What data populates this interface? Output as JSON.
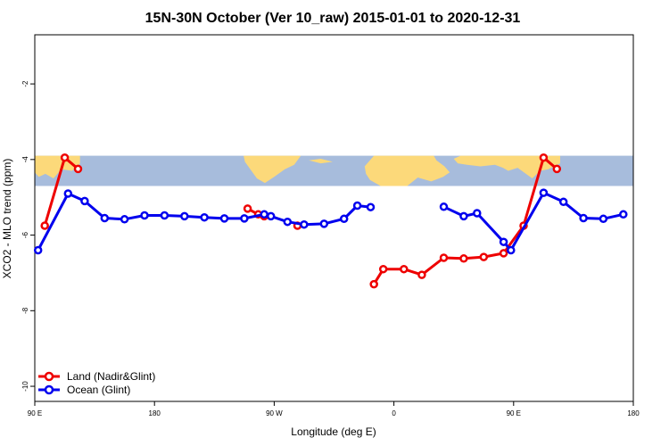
{
  "chart_data": {
    "type": "line",
    "title": "15N-30N October (Ver 10_raw)   2015-01-01 to 2020-12-31",
    "xlabel": "Longitude (deg E)",
    "ylabel": "XCO2 - MLO trend (ppm)",
    "xlim": [
      90,
      540
    ],
    "ylim": [
      -10.4,
      -0.7
    ],
    "x_ticks": [
      {
        "value": 90,
        "label": "90 E"
      },
      {
        "value": 180,
        "label": "180"
      },
      {
        "value": 270,
        "label": "90 W"
      },
      {
        "value": 360,
        "label": "0"
      },
      {
        "value": 450,
        "label": "90 E"
      },
      {
        "value": 540,
        "label": "180"
      }
    ],
    "y_ticks": [
      -2,
      -4,
      -6,
      -8,
      -10
    ],
    "legend": {
      "position": "bottom-left"
    },
    "background_map_band": {
      "y_top": -3.9,
      "y_bottom": -4.7,
      "land_color": "#fcd97a",
      "ocean_color": "#a7bcdc"
    },
    "series": [
      {
        "name": "Land (Nadir&Glint)",
        "color": "#ee0000",
        "segments": [
          [
            [
              97.5,
              -5.75
            ],
            [
              112.5,
              -3.95
            ],
            [
              122.5,
              -4.25
            ]
          ],
          [
            [
              250,
              -5.3
            ],
            [
              258,
              -5.45
            ],
            [
              262.5,
              -5.5
            ]
          ],
          [
            [
              287.5,
              -5.75
            ]
          ],
          [
            [
              345,
              -7.3
            ],
            [
              352,
              -6.9
            ],
            [
              367.5,
              -6.9
            ],
            [
              381,
              -7.05
            ],
            [
              397.5,
              -6.6
            ],
            [
              412.5,
              -6.62
            ],
            [
              427.5,
              -6.58
            ],
            [
              442.5,
              -6.48
            ],
            [
              457.5,
              -5.75
            ],
            [
              472.5,
              -3.95
            ],
            [
              482.5,
              -4.25
            ]
          ]
        ]
      },
      {
        "name": "Ocean (Glint)",
        "color": "#0000ee",
        "segments": [
          [
            [
              92.5,
              -6.4
            ],
            [
              115,
              -4.9
            ],
            [
              127.5,
              -5.1
            ],
            [
              142.5,
              -5.55
            ],
            [
              157.5,
              -5.58
            ],
            [
              172.5,
              -5.48
            ],
            [
              187.5,
              -5.48
            ],
            [
              202.5,
              -5.5
            ],
            [
              217.5,
              -5.53
            ],
            [
              232.5,
              -5.56
            ],
            [
              247.5,
              -5.56
            ],
            [
              262.5,
              -5.45
            ],
            [
              267.5,
              -5.5
            ],
            [
              280,
              -5.65
            ],
            [
              292.5,
              -5.72
            ],
            [
              307.5,
              -5.7
            ],
            [
              322.5,
              -5.57
            ],
            [
              332.5,
              -5.22
            ],
            [
              342.5,
              -5.26
            ]
          ],
          [
            [
              397.5,
              -5.25
            ],
            [
              412.5,
              -5.5
            ],
            [
              422.5,
              -5.42
            ],
            [
              442.5,
              -6.18
            ],
            [
              448,
              -6.4
            ],
            [
              472.5,
              -4.88
            ],
            [
              487.5,
              -5.12
            ],
            [
              502.5,
              -5.55
            ],
            [
              517.5,
              -5.57
            ],
            [
              532.5,
              -5.45
            ]
          ]
        ]
      }
    ]
  }
}
